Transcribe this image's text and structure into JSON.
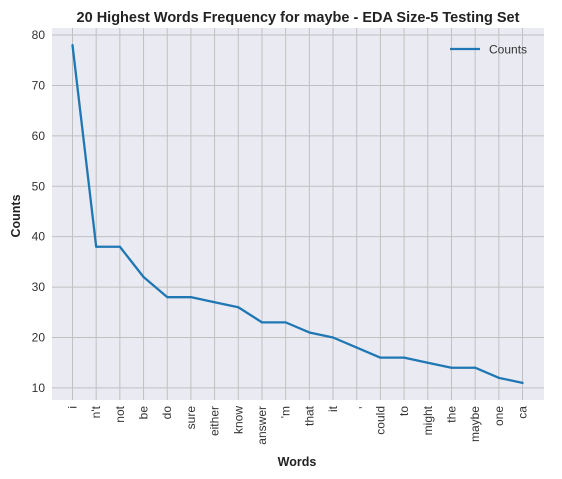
{
  "chart_data": {
    "type": "line",
    "title": "20 Highest Words Frequency for maybe - EDA Size-5 Testing Set",
    "xlabel": "Words",
    "ylabel": "Counts",
    "categories": [
      "i",
      "n't",
      "not",
      "be",
      "do",
      "sure",
      "either",
      "know",
      "answer",
      "'m",
      "that",
      "it",
      ",",
      "could",
      "to",
      "might",
      "the",
      "maybe",
      "one",
      "ca"
    ],
    "series": [
      {
        "name": "Counts",
        "values": [
          78,
          38,
          38,
          32,
          28,
          28,
          27,
          26,
          23,
          23,
          21,
          20,
          18,
          16,
          16,
          15,
          14,
          14,
          12,
          11
        ]
      }
    ],
    "ylim": [
      7.6,
      81.4
    ],
    "yticks": [
      10,
      20,
      30,
      40,
      50,
      60,
      70,
      80
    ],
    "grid": true,
    "legend": "top-right",
    "colors": {
      "line": "#1f77b4",
      "plot_bg": "#eaeaf2",
      "grid": "#c0c0c0"
    }
  }
}
